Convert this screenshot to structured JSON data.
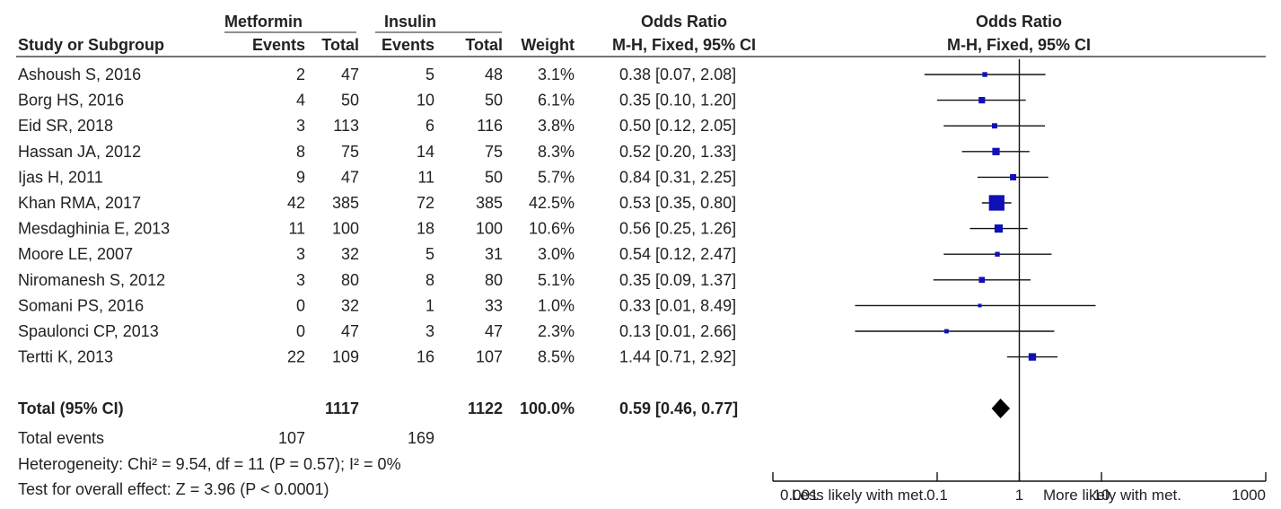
{
  "header": {
    "group1": "Metformin",
    "group2": "Insulin",
    "col_study": "Study or Subgroup",
    "col_events": "Events",
    "col_total": "Total",
    "col_weight": "Weight",
    "col_or_title": "Odds Ratio",
    "col_or_method": "M-H, Fixed, 95% CI",
    "plot_title": "Odds Ratio",
    "plot_method": "M-H, Fixed, 95% CI"
  },
  "studies": [
    {
      "name": "Ashoush S, 2016",
      "e1": "2",
      "n1": "47",
      "e2": "5",
      "n2": "48",
      "weight": "3.1%",
      "ci_text": "0.38 [0.07, 2.08]"
    },
    {
      "name": "Borg HS, 2016",
      "e1": "4",
      "n1": "50",
      "e2": "10",
      "n2": "50",
      "weight": "6.1%",
      "ci_text": "0.35 [0.10, 1.20]"
    },
    {
      "name": "Eid SR, 2018",
      "e1": "3",
      "n1": "113",
      "e2": "6",
      "n2": "116",
      "weight": "3.8%",
      "ci_text": "0.50 [0.12, 2.05]"
    },
    {
      "name": "Hassan JA, 2012",
      "e1": "8",
      "n1": "75",
      "e2": "14",
      "n2": "75",
      "weight": "8.3%",
      "ci_text": "0.52 [0.20, 1.33]"
    },
    {
      "name": "Ijas H, 2011",
      "e1": "9",
      "n1": "47",
      "e2": "11",
      "n2": "50",
      "weight": "5.7%",
      "ci_text": "0.84 [0.31, 2.25]"
    },
    {
      "name": "Khan RMA, 2017",
      "e1": "42",
      "n1": "385",
      "e2": "72",
      "n2": "385",
      "weight": "42.5%",
      "ci_text": "0.53 [0.35, 0.80]"
    },
    {
      "name": "Mesdaghinia E, 2013",
      "e1": "11",
      "n1": "100",
      "e2": "18",
      "n2": "100",
      "weight": "10.6%",
      "ci_text": "0.56 [0.25, 1.26]"
    },
    {
      "name": "Moore LE, 2007",
      "e1": "3",
      "n1": "32",
      "e2": "5",
      "n2": "31",
      "weight": "3.0%",
      "ci_text": "0.54 [0.12, 2.47]"
    },
    {
      "name": "Niromanesh S, 2012",
      "e1": "3",
      "n1": "80",
      "e2": "8",
      "n2": "80",
      "weight": "5.1%",
      "ci_text": "0.35 [0.09, 1.37]"
    },
    {
      "name": "Somani PS, 2016",
      "e1": "0",
      "n1": "32",
      "e2": "1",
      "n2": "33",
      "weight": "1.0%",
      "ci_text": "0.33 [0.01, 8.49]"
    },
    {
      "name": "Spaulonci CP, 2013",
      "e1": "0",
      "n1": "47",
      "e2": "3",
      "n2": "47",
      "weight": "2.3%",
      "ci_text": "0.13 [0.01, 2.66]"
    },
    {
      "name": "Tertti K, 2013",
      "e1": "22",
      "n1": "109",
      "e2": "16",
      "n2": "107",
      "weight": "8.5%",
      "ci_text": "1.44 [0.71, 2.92]"
    }
  ],
  "total": {
    "label": "Total (95% CI)",
    "n1": "1117",
    "n2": "1122",
    "weight": "100.0%",
    "ci_text": "0.59 [0.46, 0.77]"
  },
  "total_events": {
    "label": "Total events",
    "e1": "107",
    "e2": "169"
  },
  "heterogeneity": "Heterogeneity: Chi² = 9.54, df = 11 (P = 0.57); I² = 0%",
  "overall_effect": "Test for overall effect: Z = 3.96 (P < 0.0001)",
  "axis": {
    "ticks": [
      "0.001",
      "0.1",
      "1",
      "10",
      "1000"
    ],
    "left_label": "Less likely with met.",
    "right_label": "More likely with met."
  },
  "colors": {
    "marker": "#1010b8",
    "line": "#111111",
    "diamond": "#000000"
  },
  "chart_data": {
    "type": "forest",
    "scale": "log",
    "xlim": [
      0.001,
      1000
    ],
    "reference_line": 1,
    "series": [
      {
        "study": "Ashoush S, 2016",
        "or": 0.38,
        "lower": 0.07,
        "upper": 2.08,
        "weight": 3.1
      },
      {
        "study": "Borg HS, 2016",
        "or": 0.35,
        "lower": 0.1,
        "upper": 1.2,
        "weight": 6.1
      },
      {
        "study": "Eid SR, 2018",
        "or": 0.5,
        "lower": 0.12,
        "upper": 2.05,
        "weight": 3.8
      },
      {
        "study": "Hassan JA, 2012",
        "or": 0.52,
        "lower": 0.2,
        "upper": 1.33,
        "weight": 8.3
      },
      {
        "study": "Ijas H, 2011",
        "or": 0.84,
        "lower": 0.31,
        "upper": 2.25,
        "weight": 5.7
      },
      {
        "study": "Khan RMA, 2017",
        "or": 0.53,
        "lower": 0.35,
        "upper": 0.8,
        "weight": 42.5
      },
      {
        "study": "Mesdaghinia E, 2013",
        "or": 0.56,
        "lower": 0.25,
        "upper": 1.26,
        "weight": 10.6
      },
      {
        "study": "Moore LE, 2007",
        "or": 0.54,
        "lower": 0.12,
        "upper": 2.47,
        "weight": 3.0
      },
      {
        "study": "Niromanesh S, 2012",
        "or": 0.35,
        "lower": 0.09,
        "upper": 1.37,
        "weight": 5.1
      },
      {
        "study": "Somani PS, 2016",
        "or": 0.33,
        "lower": 0.01,
        "upper": 8.49,
        "weight": 1.0
      },
      {
        "study": "Spaulonci CP, 2013",
        "or": 0.13,
        "lower": 0.01,
        "upper": 2.66,
        "weight": 2.3
      },
      {
        "study": "Tertti K, 2013",
        "or": 1.44,
        "lower": 0.71,
        "upper": 2.92,
        "weight": 8.5
      }
    ],
    "pooled": {
      "or": 0.59,
      "lower": 0.46,
      "upper": 0.77
    }
  }
}
